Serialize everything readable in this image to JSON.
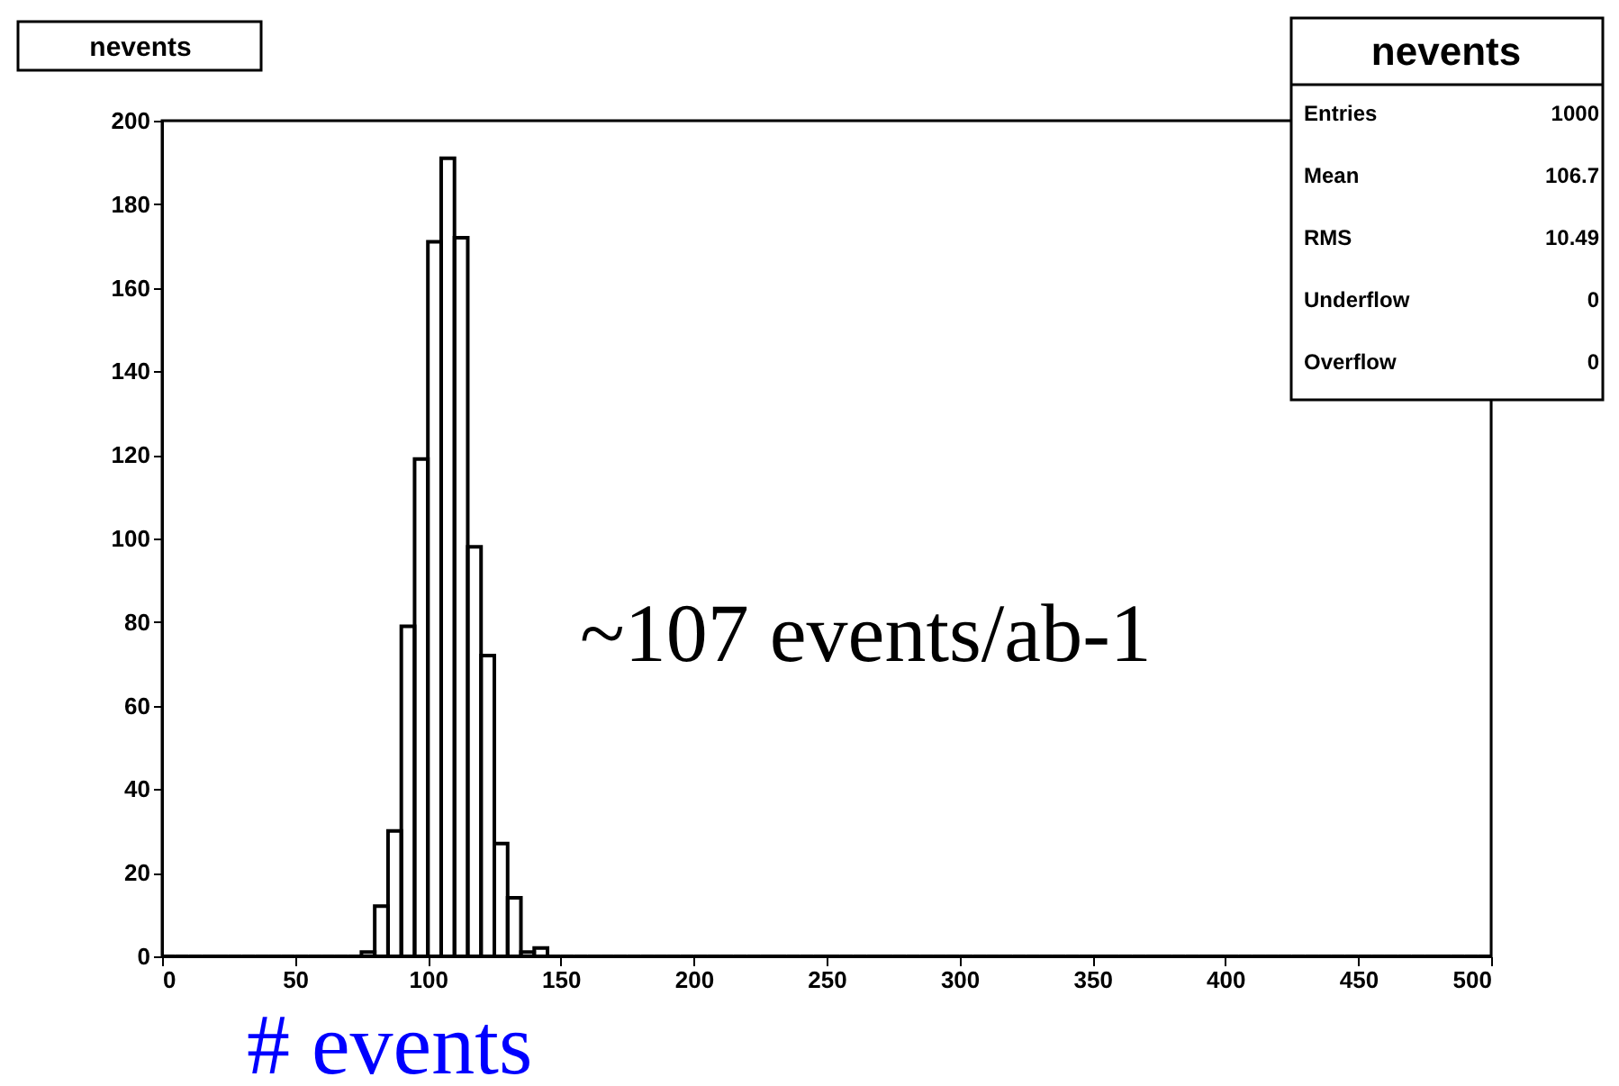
{
  "chart_data": {
    "type": "histogram",
    "title": "nevents",
    "xlabel": "# events",
    "bins": [
      0,
      5,
      10,
      15,
      20,
      25,
      30,
      35,
      40,
      45,
      50,
      55,
      60,
      65,
      70,
      75,
      80,
      85,
      90,
      95,
      100,
      105,
      110,
      115,
      120,
      125,
      130,
      135,
      140,
      145,
      150,
      155,
      160,
      165,
      170,
      175,
      180,
      185,
      190,
      195,
      200,
      205,
      210,
      215,
      220,
      225,
      230,
      235,
      240,
      245,
      250,
      255,
      260,
      265,
      270,
      275,
      280,
      285,
      290,
      295,
      300,
      305,
      310,
      315,
      320,
      325,
      330,
      335,
      340,
      345,
      350,
      355,
      360,
      365,
      370,
      375,
      380,
      385,
      390,
      395,
      400,
      405,
      410,
      415,
      420,
      425,
      430,
      435,
      440,
      445,
      450,
      455,
      460,
      465,
      470,
      475,
      480,
      485,
      490,
      495,
      500
    ],
    "values": [
      0,
      0,
      0,
      0,
      0,
      0,
      0,
      0,
      0,
      0,
      0,
      0,
      0,
      0,
      0,
      1,
      12,
      30,
      79,
      119,
      171,
      191,
      172,
      98,
      72,
      27,
      14,
      1,
      2,
      0,
      0,
      0,
      0,
      0,
      0,
      0,
      0,
      0,
      0,
      0,
      0,
      0,
      0,
      0,
      0,
      0,
      0,
      0,
      0,
      0,
      0,
      0,
      0,
      0,
      0,
      0,
      0,
      0,
      0,
      0,
      0,
      0,
      0,
      0,
      0,
      0,
      0,
      0,
      0,
      0,
      0,
      0,
      0,
      0,
      0,
      0,
      0,
      0,
      0,
      0,
      0,
      0,
      0,
      0,
      0,
      0,
      0,
      0,
      0,
      0,
      0,
      0,
      0,
      0,
      0,
      0,
      0,
      0,
      0,
      0
    ],
    "color": "#000000",
    "xlim": [
      0,
      500
    ],
    "xticks": [
      0,
      50,
      100,
      150,
      200,
      250,
      300,
      350,
      400,
      450,
      500
    ],
    "ylim": [
      0,
      200
    ],
    "yticks": [
      0,
      20,
      40,
      60,
      80,
      100,
      120,
      140,
      160,
      180,
      200
    ],
    "grid": false,
    "annotations": [
      "~107 events/ab-1",
      "nevents",
      "Entries",
      "1000",
      "Mean",
      "106.7",
      "RMS",
      "10.49",
      "Underflow",
      "0",
      "Overflow",
      "0"
    ]
  }
}
